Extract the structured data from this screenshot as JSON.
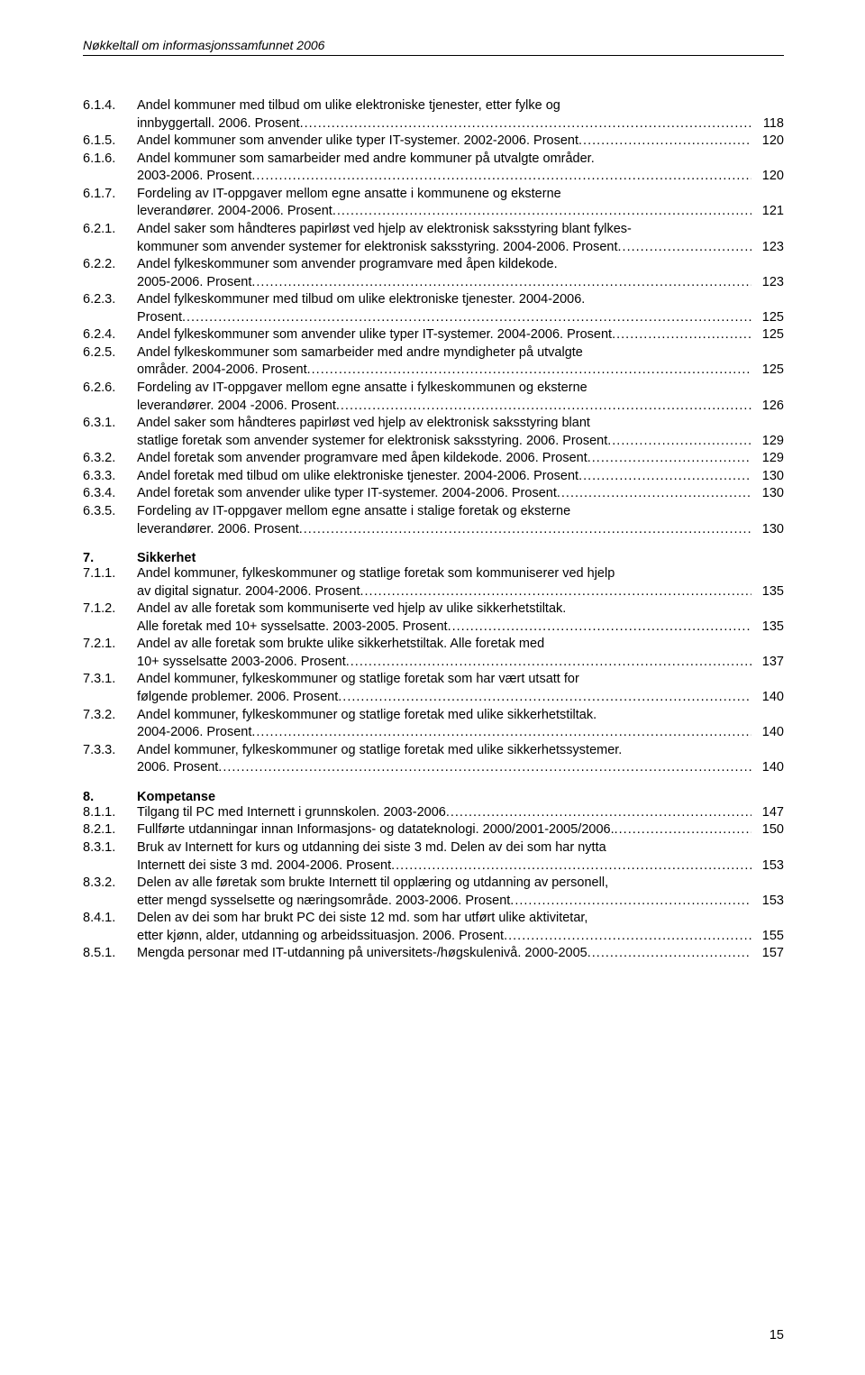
{
  "running_head": "Nøkkeltall om informasjonssamfunnet 2006",
  "page_number": "15",
  "entries": [
    {
      "num": "6.1.4.",
      "lines": [
        "Andel kommuner med tilbud om ulike elektroniske tjenester, etter fylke og",
        "innbyggertall. 2006. Prosent"
      ],
      "page": "118"
    },
    {
      "num": "6.1.5.",
      "lines": [
        "Andel kommuner som anvender ulike typer IT-systemer. 2002-2006. Prosent"
      ],
      "page": "120"
    },
    {
      "num": "6.1.6.",
      "lines": [
        "Andel kommuner som samarbeider med andre kommuner på utvalgte områder.",
        "2003-2006. Prosent"
      ],
      "page": "120"
    },
    {
      "num": "6.1.7.",
      "lines": [
        "Fordeling av IT-oppgaver mellom egne ansatte i kommunene og eksterne",
        "leverandører. 2004-2006. Prosent"
      ],
      "page": "121"
    },
    {
      "num": "6.2.1.",
      "lines": [
        "Andel saker som håndteres papirløst ved hjelp av elektronisk saksstyring blant fylkes-",
        "kommuner som anvender systemer for elektronisk saksstyring. 2004-2006. Prosent"
      ],
      "page": "123"
    },
    {
      "num": "6.2.2.",
      "lines": [
        "Andel fylkeskommuner som anvender programvare med åpen kildekode.",
        "2005-2006. Prosent"
      ],
      "page": "123"
    },
    {
      "num": "6.2.3.",
      "lines": [
        "Andel fylkeskommuner med tilbud om ulike elektroniske tjenester. 2004-2006.",
        "Prosent"
      ],
      "page": "125"
    },
    {
      "num": "6.2.4.",
      "lines": [
        "Andel fylkeskommuner som anvender ulike typer IT-systemer. 2004-2006. Prosent"
      ],
      "page": "125"
    },
    {
      "num": "6.2.5.",
      "lines": [
        "Andel fylkeskommuner som samarbeider med andre myndigheter på utvalgte",
        "områder. 2004-2006. Prosent"
      ],
      "page": "125"
    },
    {
      "num": "6.2.6.",
      "lines": [
        "Fordeling av IT-oppgaver mellom egne ansatte i fylkeskommunen og eksterne",
        "leverandører. 2004 -2006. Prosent"
      ],
      "page": "126"
    },
    {
      "num": "6.3.1.",
      "lines": [
        "Andel saker som håndteres papirløst ved hjelp av elektronisk saksstyring blant",
        "statlige foretak som anvender systemer for elektronisk saksstyring. 2006. Prosent"
      ],
      "page": "129"
    },
    {
      "num": "6.3.2.",
      "lines": [
        "Andel foretak som anvender programvare med åpen kildekode. 2006. Prosent"
      ],
      "page": "129"
    },
    {
      "num": "6.3.3.",
      "lines": [
        "Andel foretak med tilbud om ulike elektroniske tjenester. 2004-2006. Prosent"
      ],
      "page": "130"
    },
    {
      "num": "6.3.4.",
      "lines": [
        "Andel foretak som anvender ulike typer IT-systemer. 2004-2006. Prosent"
      ],
      "page": "130"
    },
    {
      "num": "6.3.5.",
      "lines": [
        "Fordeling av IT-oppgaver mellom egne ansatte i stalige foretak og eksterne",
        "leverandører. 2006. Prosent"
      ],
      "page": "130"
    }
  ],
  "section7": {
    "num": "7.",
    "title": "Sikkerhet"
  },
  "entries7": [
    {
      "num": "7.1.1.",
      "lines": [
        "Andel kommuner, fylkeskommuner og statlige foretak som kommuniserer ved hjelp",
        "av digital signatur. 2004-2006. Prosent"
      ],
      "page": "135"
    },
    {
      "num": "7.1.2.",
      "lines": [
        "Andel av alle foretak som kommuniserte ved hjelp av ulike sikkerhetstiltak.",
        "Alle foretak med 10+ sysselsatte. 2003-2005. Prosent"
      ],
      "page": "135"
    },
    {
      "num": "7.2.1.",
      "lines": [
        "Andel av alle foretak som brukte ulike sikkerhetstiltak. Alle foretak med",
        "10+ sysselsatte 2003-2006. Prosent"
      ],
      "page": "137"
    },
    {
      "num": "7.3.1.",
      "lines": [
        "Andel kommuner, fylkeskommuner og statlige foretak som har vært utsatt for",
        "følgende problemer. 2006. Prosent"
      ],
      "page": "140"
    },
    {
      "num": "7.3.2.",
      "lines": [
        "Andel kommuner, fylkeskommuner og statlige foretak med ulike sikkerhetstiltak.",
        "2004-2006. Prosent"
      ],
      "page": "140"
    },
    {
      "num": "7.3.3.",
      "lines": [
        "Andel kommuner, fylkeskommuner og statlige foretak med ulike sikkerhetssystemer.",
        "2006. Prosent"
      ],
      "page": "140"
    }
  ],
  "section8": {
    "num": "8.",
    "title": "Kompetanse"
  },
  "entries8": [
    {
      "num": "8.1.1.",
      "lines": [
        "Tilgang til PC med Internett i grunnskolen. 2003-2006"
      ],
      "page": "147"
    },
    {
      "num": "8.2.1.",
      "lines": [
        "Fullførte utdanningar innan Informasjons- og datateknologi. 2000/2001-2005/2006."
      ],
      "page": "150"
    },
    {
      "num": "8.3.1.",
      "lines": [
        "Bruk av Internett for kurs og utdanning dei siste 3 md. Delen av dei som har nytta",
        "Internett dei siste 3 md. 2004-2006. Prosent"
      ],
      "page": "153"
    },
    {
      "num": "8.3.2.",
      "lines": [
        "Delen av alle føretak som brukte Internett til opplæring og utdanning av personell,",
        "etter mengd sysselsette og næringsområde. 2003-2006. Prosent"
      ],
      "page": "153"
    },
    {
      "num": "8.4.1.",
      "lines": [
        "Delen av dei som har brukt PC dei siste 12 md. som har utført ulike aktivitetar,",
        "etter kjønn, alder, utdanning og arbeidssituasjon. 2006. Prosent"
      ],
      "page": "155"
    },
    {
      "num": "8.5.1.",
      "lines": [
        "Mengda personar med IT-utdanning på universitets-/høgskulenivå. 2000-2005"
      ],
      "page": "157"
    }
  ]
}
